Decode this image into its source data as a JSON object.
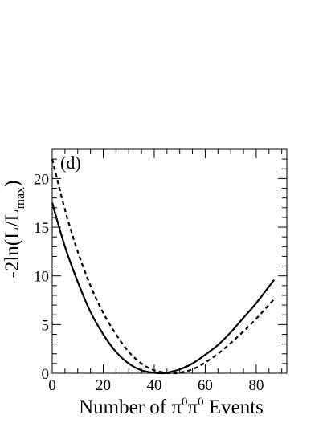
{
  "chart_data": {
    "type": "line",
    "panel_label": "(d)",
    "xlabel": {
      "prefix": "Number of ",
      "pi": "π",
      "sup": "0",
      "suffix": " Events"
    },
    "ylabel": {
      "prefix": "-2ln(L/L",
      "sub": "max",
      "suffix": ")"
    },
    "xlim": [
      0,
      92
    ],
    "ylim": [
      0,
      23
    ],
    "x_ticks": [
      0,
      20,
      40,
      60,
      80
    ],
    "y_ticks": [
      0,
      5,
      10,
      15,
      20
    ],
    "grid": false,
    "series": [
      {
        "style": "solid",
        "color": "#000000",
        "x": [
          0,
          5,
          10,
          15,
          20,
          25,
          30,
          35,
          40,
          43,
          45,
          50,
          55,
          60,
          65,
          70,
          75,
          80,
          87
        ],
        "y": [
          17.5,
          13.0,
          9.4,
          6.3,
          4.0,
          2.2,
          1.0,
          0.3,
          0.05,
          0.0,
          0.05,
          0.4,
          1.0,
          1.9,
          2.9,
          4.2,
          5.7,
          7.2,
          9.6
        ]
      },
      {
        "style": "dashed",
        "color": "#000000",
        "x": [
          0,
          5,
          10,
          15,
          20,
          25,
          30,
          35,
          40,
          45,
          48,
          50,
          55,
          60,
          65,
          70,
          75,
          80,
          87
        ],
        "y": [
          22.0,
          16.8,
          12.5,
          9.0,
          6.2,
          4.0,
          2.2,
          1.0,
          0.3,
          0.03,
          0.0,
          0.05,
          0.4,
          1.1,
          2.0,
          3.1,
          4.3,
          5.6,
          7.6
        ]
      }
    ]
  }
}
